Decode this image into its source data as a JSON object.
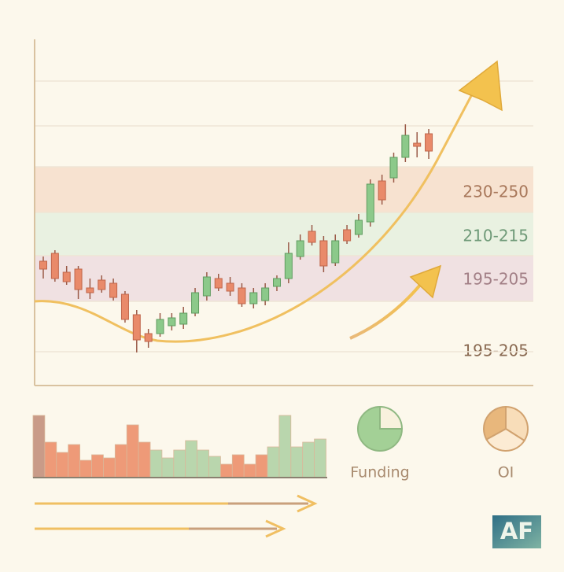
{
  "chart_data": [
    {
      "type": "candlestick",
      "ylim": [
        0,
        110
      ],
      "up_color": "#8cc98a",
      "down_color": "#e98a6a",
      "zones": [
        {
          "label": "230-250",
          "color": "#a8775a",
          "fill": "#f7e2d0"
        },
        {
          "label": "210-215",
          "color": "#6f9a78",
          "fill": "#e9f1e1"
        },
        {
          "label": "195-205",
          "color": "#a27f86",
          "fill": "#f0e1e2"
        },
        {
          "label": "195-205",
          "color": "#8a6a52"
        }
      ],
      "open": [
        39.5,
        42,
        36,
        37,
        31,
        33.5,
        32.5,
        29,
        22.5,
        16.5,
        16.5,
        19,
        19.5,
        23,
        28.5,
        34,
        32.5,
        31,
        26,
        27,
        31.5,
        34,
        41,
        49,
        46,
        39,
        49.5,
        48,
        52,
        65,
        66,
        72.5,
        77,
        80
      ],
      "high": [
        41,
        43,
        38,
        38,
        34,
        35,
        34,
        30,
        24,
        18,
        23,
        23,
        25,
        31,
        36,
        35.5,
        34.5,
        32.5,
        31,
        32.5,
        35,
        45.5,
        48,
        51,
        47.5,
        48,
        51,
        54.5,
        65.5,
        67,
        74,
        83,
        80.5,
        81.5
      ],
      "low": [
        34,
        33,
        32,
        27.5,
        27.5,
        29.5,
        27,
        20,
        10.5,
        12,
        15.5,
        17.5,
        18,
        22,
        27,
        30,
        28.5,
        25,
        24.5,
        25.5,
        30,
        32.5,
        40,
        44.5,
        36,
        38,
        45,
        47,
        50.5,
        57.5,
        64.5,
        71,
        72.5,
        72
      ],
      "close": [
        37,
        34,
        33,
        30.5,
        29.5,
        30.5,
        28,
        21,
        14.5,
        14,
        21,
        21.5,
        23,
        29.5,
        34.5,
        31,
        30,
        26,
        29.5,
        31,
        34,
        42,
        46,
        45.5,
        38,
        46,
        46,
        52.5,
        64,
        59,
        72.5,
        79.5,
        76,
        74.5
      ]
    },
    {
      "type": "bar",
      "ylim": [
        0,
        90
      ],
      "values": [
        79,
        45,
        32,
        42,
        22,
        29,
        25,
        42,
        67,
        45,
        35,
        25,
        35,
        47,
        35,
        27,
        17,
        29,
        17,
        29,
        39,
        79,
        39,
        45,
        49
      ],
      "colors": [
        "#c99b88",
        "#ee9a78",
        "#ee9a78",
        "#ee9a78",
        "#ee9a78",
        "#ee9a78",
        "#ee9a78",
        "#ee9a78",
        "#ee9a78",
        "#ee9a78",
        "#b9d6ad",
        "#b9d6ad",
        "#b9d6ad",
        "#b9d6ad",
        "#b9d6ad",
        "#b9d6ad",
        "#ee9a78",
        "#ee9a78",
        "#ee9a78",
        "#ee9a78",
        "#b9d6ad",
        "#b9d6ad",
        "#b9d6ad",
        "#b9d6ad",
        "#b9d6ad"
      ]
    },
    {
      "type": "pie",
      "label": "Funding",
      "values": [
        25,
        75
      ],
      "colors": [
        "#f8f1dd",
        "#a3d096"
      ],
      "stroke": "#8fb882"
    },
    {
      "type": "pie",
      "label": "OI",
      "values": [
        34,
        33,
        33
      ],
      "colors": [
        "#f8ddb9",
        "#fcebd3",
        "#e8b77c"
      ],
      "stroke": "#d1a26f"
    }
  ],
  "logo": "AF"
}
